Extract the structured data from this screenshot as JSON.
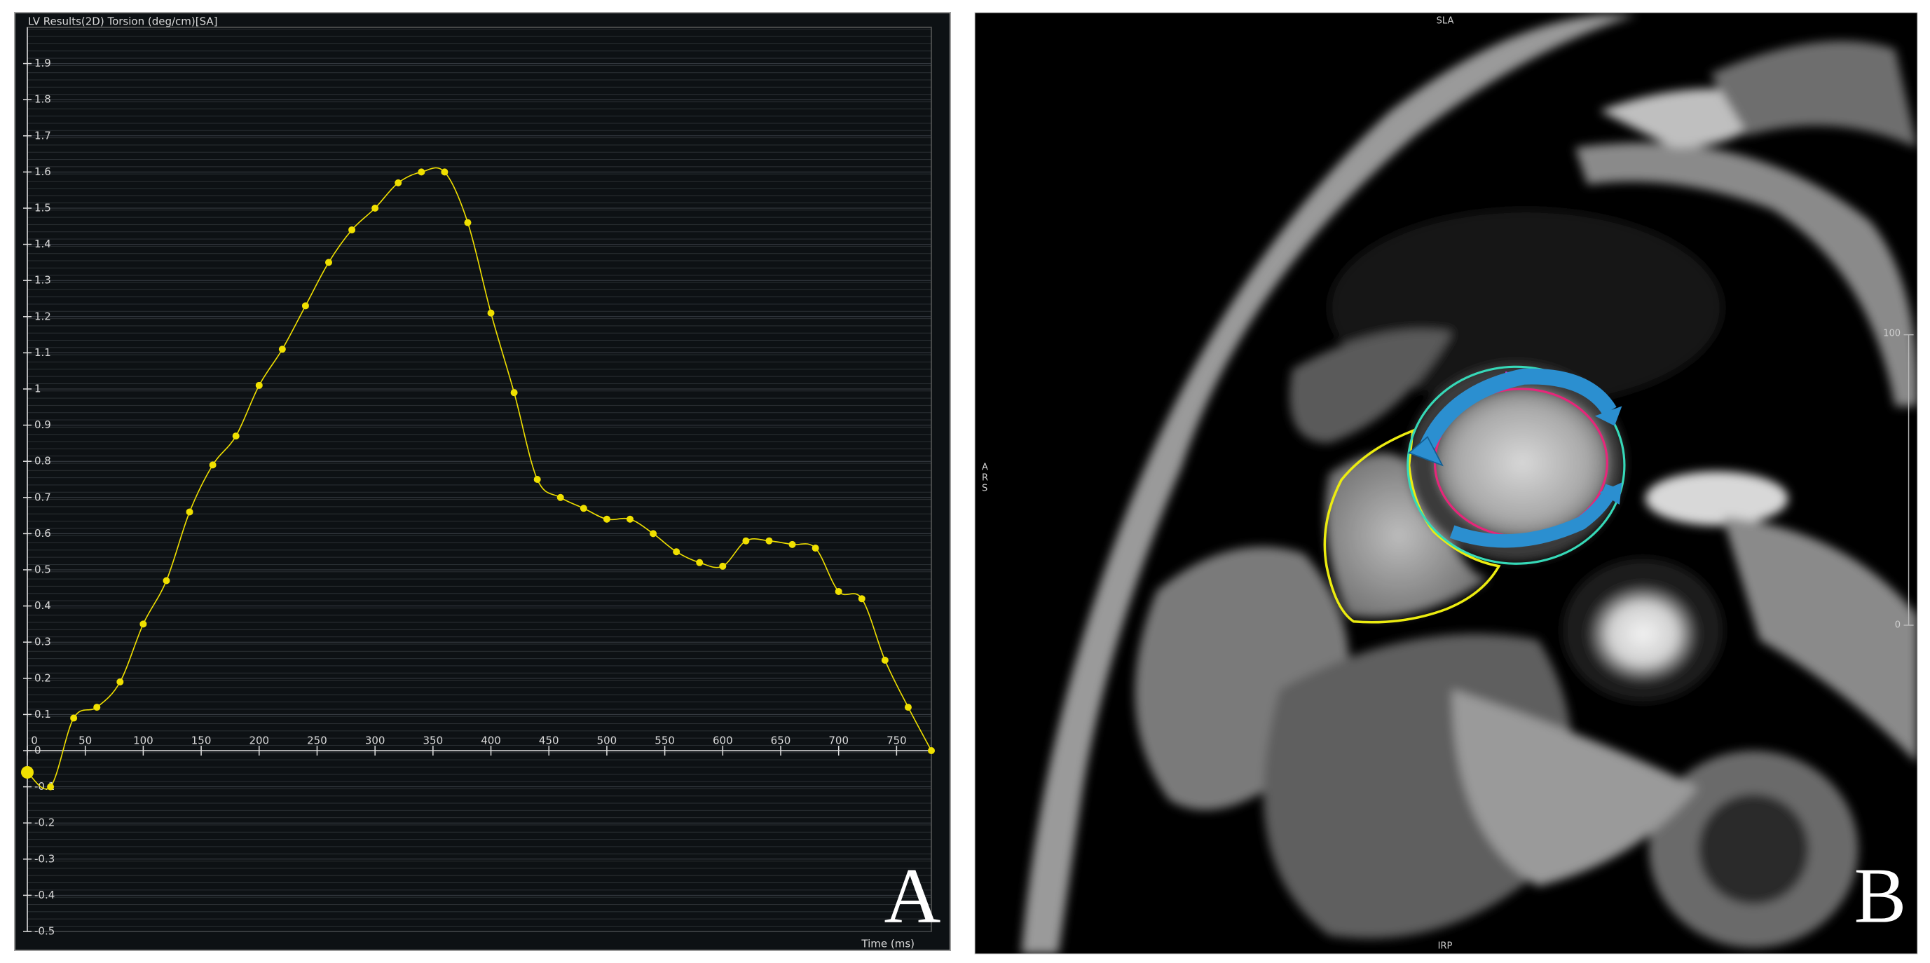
{
  "chart_data": {
    "type": "line",
    "title": "LV Results(2D) Torsion (deg/cm)[SA]",
    "x_label": "Time (ms)",
    "panel_label": "A",
    "color": "#f0e000",
    "x": [
      0,
      20,
      40,
      60,
      80,
      100,
      120,
      140,
      160,
      180,
      200,
      220,
      240,
      260,
      280,
      300,
      320,
      340,
      360,
      380,
      400,
      420,
      440,
      460,
      480,
      500,
      520,
      540,
      560,
      580,
      600,
      620,
      640,
      660,
      680,
      700,
      720,
      740,
      760,
      780
    ],
    "values": [
      -0.06,
      -0.1,
      0.09,
      0.12,
      0.19,
      0.35,
      0.47,
      0.66,
      0.79,
      0.87,
      1.01,
      1.11,
      1.23,
      1.35,
      1.44,
      1.5,
      1.57,
      1.6,
      1.6,
      1.46,
      1.21,
      0.99,
      0.75,
      0.7,
      0.67,
      0.64,
      0.64,
      0.6,
      0.55,
      0.52,
      0.51,
      0.58,
      0.58,
      0.57,
      0.56,
      0.44,
      0.42,
      0.25,
      0.12,
      0
    ],
    "xlim": [
      0,
      780
    ],
    "ylim": [
      -0.5,
      2
    ],
    "xticks": [
      0,
      50,
      100,
      150,
      200,
      250,
      300,
      350,
      400,
      450,
      500,
      550,
      600,
      650,
      700,
      750
    ],
    "yticks": [
      -0.5,
      -0.4,
      -0.3,
      -0.2,
      -0.1,
      0,
      0.1,
      0.2,
      0.3,
      0.4,
      0.5,
      0.6,
      0.7,
      0.8,
      0.9,
      1,
      1.1,
      1.2,
      1.3,
      1.4,
      1.5,
      1.6,
      1.7,
      1.8,
      1.9
    ],
    "grid": true
  },
  "image_panel": {
    "orientation_top": "SLA",
    "orientation_bottom": "IRP",
    "orientation_left": [
      "A",
      "R",
      "S"
    ],
    "scale_max": 100,
    "scale_min": 0,
    "panel_label": "B"
  }
}
